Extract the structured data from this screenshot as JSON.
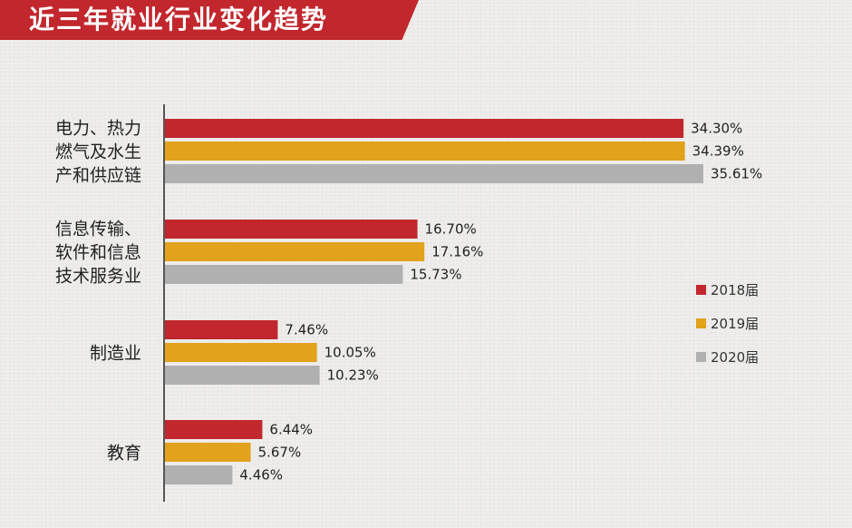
{
  "chart_data": {
    "type": "bar",
    "orientation": "horizontal",
    "title": "近三年就业行业变化趋势",
    "categories": [
      [
        "电力、热力",
        "燃气及水生",
        "产和供应链"
      ],
      [
        "信息传输、",
        "软件和信息",
        "技术服务业"
      ],
      [
        "制造业"
      ],
      [
        "教育"
      ]
    ],
    "series": [
      {
        "name": "2018届",
        "color": "#c1272d",
        "values": [
          34.3,
          16.7,
          7.46,
          6.44
        ],
        "labels": [
          "34.30%",
          "16.70%",
          "7.46%",
          "6.44%"
        ]
      },
      {
        "name": "2019届",
        "color": "#e2a21b",
        "values": [
          34.39,
          17.16,
          10.05,
          5.67
        ],
        "labels": [
          "34.39%",
          "17.16%",
          "10.05%",
          "5.67%"
        ]
      },
      {
        "name": "2020届",
        "color": "#b0b0b0",
        "values": [
          35.61,
          15.73,
          10.23,
          4.46
        ],
        "labels": [
          "35.61%",
          "15.73%",
          "10.23%",
          "4.46%"
        ]
      }
    ],
    "xlim": [
      0,
      40
    ],
    "xlabel": "",
    "ylabel": "",
    "grid": false,
    "legend_position": "right"
  }
}
